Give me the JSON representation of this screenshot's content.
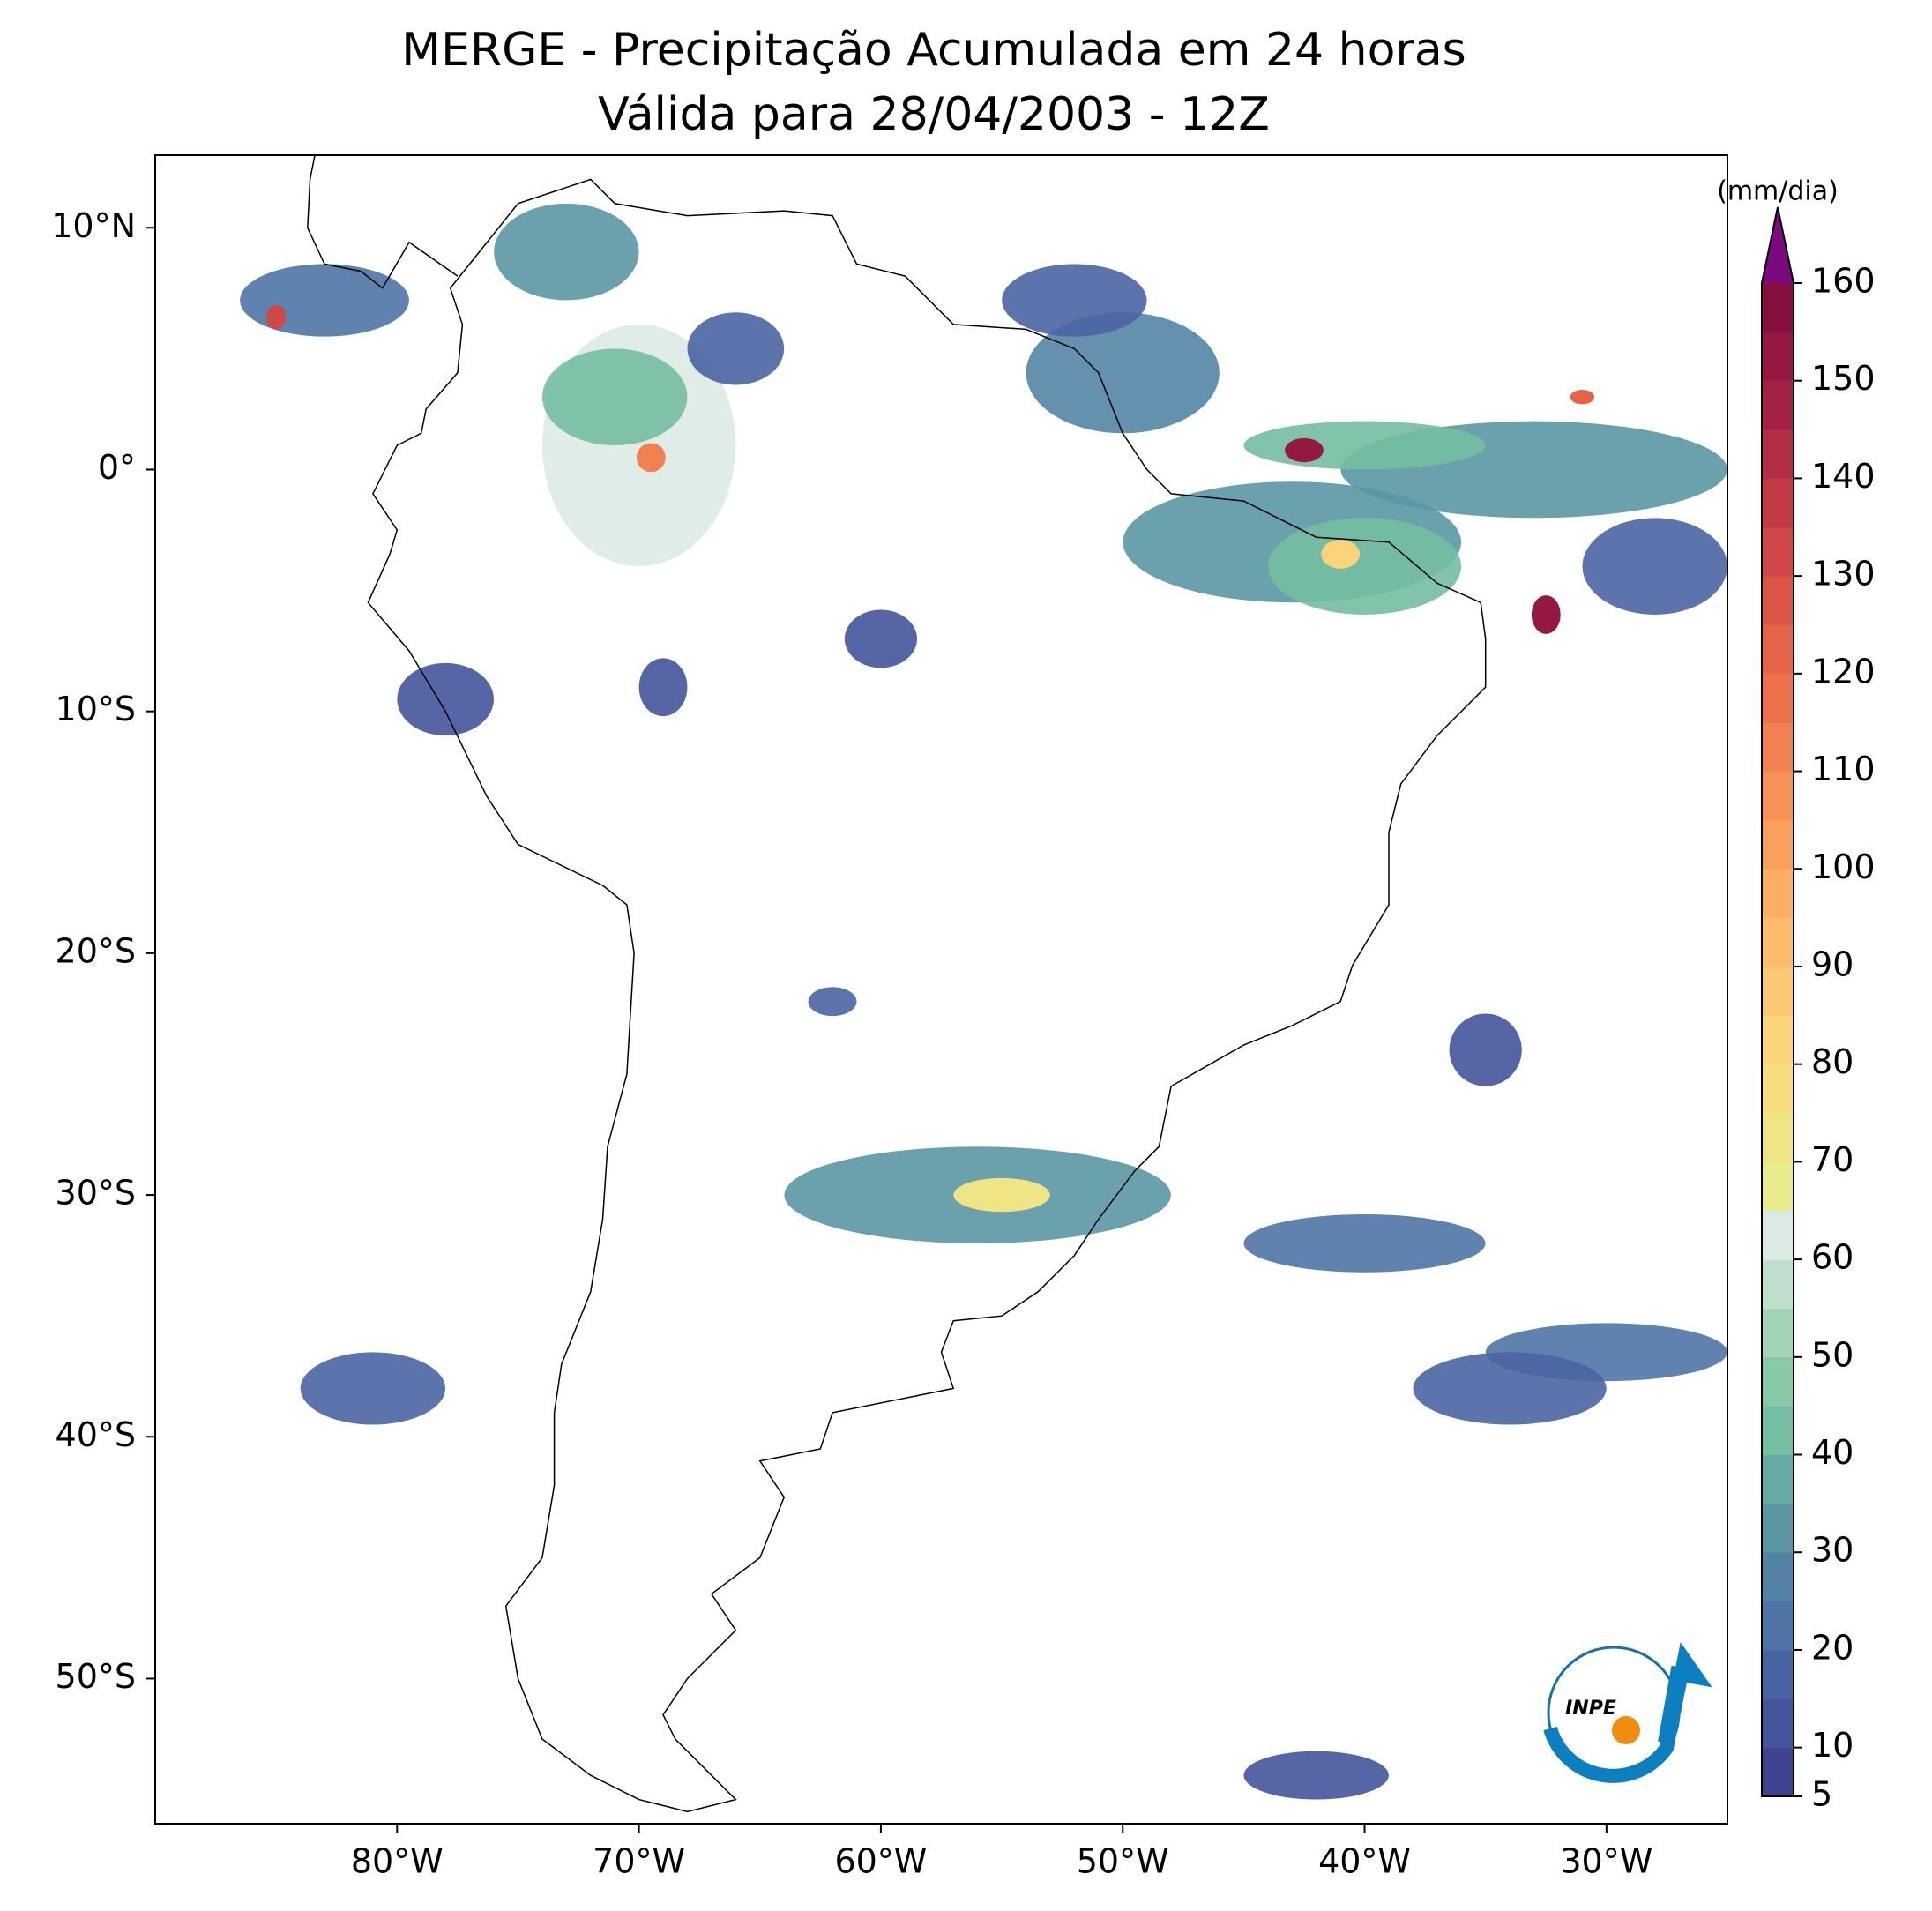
{
  "map": {
    "title": "MERGE - Precipitação Acumulada em 24 horas",
    "subtitle": "Válida para 28/04/2003 - 12Z",
    "xlim": [
      -90,
      -25
    ],
    "ylim": [
      -56,
      13
    ],
    "xticks": [
      {
        "value": -80,
        "label": "80°W"
      },
      {
        "value": -70,
        "label": "70°W"
      },
      {
        "value": -60,
        "label": "60°W"
      },
      {
        "value": -50,
        "label": "50°W"
      },
      {
        "value": -40,
        "label": "40°W"
      },
      {
        "value": -30,
        "label": "30°W"
      }
    ],
    "yticks": [
      {
        "value": 10,
        "label": "10°N"
      },
      {
        "value": 0,
        "label": "0°"
      },
      {
        "value": -10,
        "label": "10°S"
      },
      {
        "value": -20,
        "label": "20°S"
      },
      {
        "value": -30,
        "label": "30°S"
      },
      {
        "value": -40,
        "label": "40°S"
      },
      {
        "value": -50,
        "label": "50°S"
      }
    ]
  },
  "colorbar": {
    "label": "(mm/dia)",
    "ticks": [
      5,
      10,
      20,
      30,
      40,
      50,
      60,
      70,
      80,
      90,
      100,
      110,
      120,
      130,
      140,
      150,
      160
    ],
    "levels": [
      5,
      10,
      15,
      20,
      25,
      30,
      35,
      40,
      45,
      50,
      55,
      60,
      65,
      70,
      75,
      80,
      85,
      90,
      95,
      100,
      105,
      110,
      115,
      120,
      125,
      130,
      135,
      140,
      145,
      150,
      155,
      160
    ],
    "colors": [
      "#3e4491",
      "#44549b",
      "#4a64a3",
      "#4f74a6",
      "#5285a5",
      "#5b97a3",
      "#66aaa2",
      "#74bea1",
      "#89c9a8",
      "#a3d4b7",
      "#bfdfcc",
      "#dbeae5",
      "#e8ec8f",
      "#efe585",
      "#f6dc7e",
      "#fbd37a",
      "#fcc874",
      "#fcbc6c",
      "#fbae64",
      "#f9a05d",
      "#f69157",
      "#f28151",
      "#ed724c",
      "#e56348",
      "#db5547",
      "#cf4746",
      "#c13a46",
      "#b22d45",
      "#a32244",
      "#941842",
      "#85103f"
    ],
    "extend_color": "#7b0a7e"
  },
  "logo": "INPE"
}
